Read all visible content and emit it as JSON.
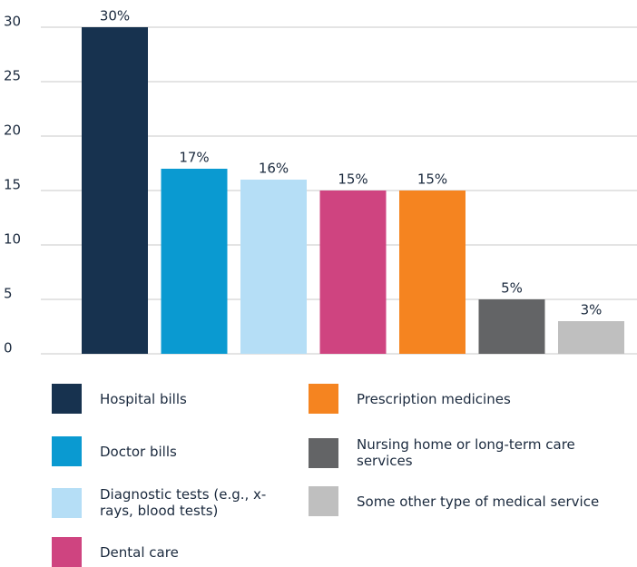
{
  "chart_data": {
    "type": "bar",
    "categories": [
      "Hospital bills",
      "Doctor bills",
      "Diagnostic tests (e.g., x-rays, blood tests)",
      "Dental care",
      "Prescription medicines",
      "Nursing home or long-term care services",
      "Some other type of medical service"
    ],
    "values": [
      30,
      17,
      16,
      15,
      15,
      5,
      3
    ],
    "value_labels": [
      "30%",
      "17%",
      "16%",
      "15%",
      "15%",
      "5%",
      "3%"
    ],
    "colors": [
      "#17324f",
      "#0a9ad1",
      "#b5def6",
      "#cf4480",
      "#f58420",
      "#636466",
      "#bfbfbf"
    ],
    "ylim": [
      0,
      30
    ],
    "yticks": [
      0,
      5,
      10,
      15,
      20,
      25,
      30
    ],
    "grid": true,
    "legend": "bottom"
  }
}
